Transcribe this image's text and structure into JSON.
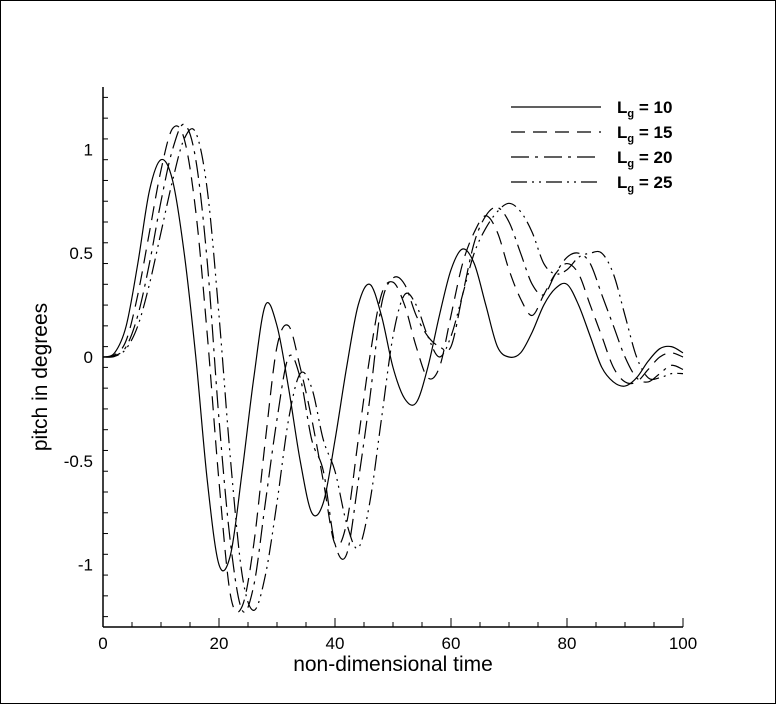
{
  "chart_data": {
    "type": "line",
    "xlabel": "non-dimensional time",
    "ylabel": "pitch in degrees",
    "xlim": [
      0,
      100
    ],
    "ylim": [
      -1.3,
      1.3
    ],
    "x_ticks": [
      0,
      20,
      40,
      60,
      80,
      100
    ],
    "x_tick_labels": [
      "0",
      "20",
      "40",
      "60",
      "80",
      "100"
    ],
    "y_ticks": [
      -1,
      -0.5,
      0,
      0.5,
      1
    ],
    "y_tick_labels": [
      "-1",
      "-0.5",
      "0",
      "0.5",
      "1"
    ],
    "grid": false,
    "legend_position": "top-right",
    "line_color": "#000000",
    "series": [
      {
        "label_main": "L",
        "label_sub": "g",
        "label_value": "= 10",
        "dash": "solid",
        "points": [
          [
            0,
            0
          ],
          [
            2,
            0.02
          ],
          [
            4,
            0.15
          ],
          [
            6,
            0.45
          ],
          [
            8,
            0.8
          ],
          [
            10,
            0.95
          ],
          [
            12,
            0.85
          ],
          [
            14,
            0.5
          ],
          [
            16,
            0
          ],
          [
            18,
            -0.6
          ],
          [
            20,
            -1.0
          ],
          [
            22,
            -0.95
          ],
          [
            24,
            -0.55
          ],
          [
            26,
            -0.1
          ],
          [
            28,
            0.25
          ],
          [
            30,
            0.15
          ],
          [
            32,
            -0.15
          ],
          [
            34,
            -0.5
          ],
          [
            36,
            -0.75
          ],
          [
            38,
            -0.7
          ],
          [
            40,
            -0.4
          ],
          [
            42,
            -0.05
          ],
          [
            44,
            0.25
          ],
          [
            46,
            0.35
          ],
          [
            48,
            0.2
          ],
          [
            50,
            -0.05
          ],
          [
            52,
            -0.2
          ],
          [
            54,
            -0.22
          ],
          [
            56,
            -0.05
          ],
          [
            58,
            0.2
          ],
          [
            60,
            0.42
          ],
          [
            62,
            0.52
          ],
          [
            64,
            0.45
          ],
          [
            66,
            0.25
          ],
          [
            68,
            0.05
          ],
          [
            70,
            0
          ],
          [
            72,
            0.02
          ],
          [
            74,
            0.12
          ],
          [
            76,
            0.25
          ],
          [
            78,
            0.33
          ],
          [
            80,
            0.35
          ],
          [
            82,
            0.25
          ],
          [
            84,
            0.1
          ],
          [
            86,
            -0.05
          ],
          [
            88,
            -0.12
          ],
          [
            90,
            -0.14
          ],
          [
            92,
            -0.1
          ],
          [
            94,
            -0.02
          ],
          [
            96,
            0.04
          ],
          [
            98,
            0.05
          ],
          [
            100,
            0.02
          ]
        ]
      },
      {
        "label_main": "L",
        "label_sub": "g",
        "label_value": "= 15",
        "dash": "dashed",
        "points": [
          [
            0,
            0
          ],
          [
            2,
            0.01
          ],
          [
            4,
            0.08
          ],
          [
            6,
            0.3
          ],
          [
            8,
            0.6
          ],
          [
            10,
            0.9
          ],
          [
            12,
            1.1
          ],
          [
            14,
            1.05
          ],
          [
            16,
            0.7
          ],
          [
            18,
            0.1
          ],
          [
            20,
            -0.6
          ],
          [
            22,
            -1.15
          ],
          [
            24,
            -1.2
          ],
          [
            26,
            -0.9
          ],
          [
            28,
            -0.4
          ],
          [
            30,
            0.05
          ],
          [
            32,
            0.15
          ],
          [
            34,
            -0.05
          ],
          [
            36,
            -0.3
          ],
          [
            38,
            -0.6
          ],
          [
            40,
            -0.9
          ],
          [
            42,
            -0.8
          ],
          [
            44,
            -0.4
          ],
          [
            46,
            0
          ],
          [
            48,
            0.3
          ],
          [
            50,
            0.36
          ],
          [
            52,
            0.25
          ],
          [
            54,
            0.05
          ],
          [
            56,
            -0.1
          ],
          [
            58,
            -0.05
          ],
          [
            60,
            0.2
          ],
          [
            62,
            0.45
          ],
          [
            64,
            0.6
          ],
          [
            66,
            0.68
          ],
          [
            68,
            0.6
          ],
          [
            70,
            0.42
          ],
          [
            72,
            0.28
          ],
          [
            74,
            0.2
          ],
          [
            76,
            0.3
          ],
          [
            78,
            0.4
          ],
          [
            80,
            0.45
          ],
          [
            82,
            0.4
          ],
          [
            84,
            0.25
          ],
          [
            86,
            0.1
          ],
          [
            88,
            -0.05
          ],
          [
            90,
            -0.12
          ],
          [
            92,
            -0.12
          ],
          [
            94,
            -0.06
          ],
          [
            96,
            0
          ],
          [
            98,
            0.02
          ],
          [
            100,
            0
          ]
        ]
      },
      {
        "label_main": "L",
        "label_sub": "g",
        "label_value": "= 20",
        "dash": "dash-dot",
        "points": [
          [
            0,
            0
          ],
          [
            2,
            0.005
          ],
          [
            4,
            0.05
          ],
          [
            6,
            0.2
          ],
          [
            8,
            0.45
          ],
          [
            10,
            0.75
          ],
          [
            12,
            1.0
          ],
          [
            14,
            1.12
          ],
          [
            16,
            0.95
          ],
          [
            18,
            0.45
          ],
          [
            20,
            -0.3
          ],
          [
            22,
            -0.9
          ],
          [
            24,
            -1.22
          ],
          [
            26,
            -1.1
          ],
          [
            28,
            -0.7
          ],
          [
            30,
            -0.3
          ],
          [
            32,
            0
          ],
          [
            34,
            -0.1
          ],
          [
            36,
            -0.4
          ],
          [
            38,
            -0.55
          ],
          [
            40,
            -0.9
          ],
          [
            42,
            -0.95
          ],
          [
            44,
            -0.6
          ],
          [
            46,
            -0.2
          ],
          [
            48,
            0.25
          ],
          [
            50,
            0.38
          ],
          [
            52,
            0.35
          ],
          [
            54,
            0.2
          ],
          [
            56,
            0.1
          ],
          [
            58,
            0.05
          ],
          [
            60,
            0.05
          ],
          [
            62,
            0.3
          ],
          [
            64,
            0.55
          ],
          [
            66,
            0.68
          ],
          [
            68,
            0.72
          ],
          [
            70,
            0.65
          ],
          [
            72,
            0.5
          ],
          [
            74,
            0.35
          ],
          [
            76,
            0.3
          ],
          [
            78,
            0.4
          ],
          [
            80,
            0.48
          ],
          [
            82,
            0.5
          ],
          [
            84,
            0.45
          ],
          [
            86,
            0.3
          ],
          [
            88,
            0.15
          ],
          [
            90,
            0
          ],
          [
            92,
            -0.1
          ],
          [
            94,
            -0.12
          ],
          [
            96,
            -0.08
          ],
          [
            98,
            -0.04
          ],
          [
            100,
            -0.06
          ]
        ]
      },
      {
        "label_main": "L",
        "label_sub": "g",
        "label_value": "= 25",
        "dash": "dash-dot-dot",
        "points": [
          [
            0,
            0
          ],
          [
            2,
            0.003
          ],
          [
            4,
            0.04
          ],
          [
            6,
            0.15
          ],
          [
            8,
            0.35
          ],
          [
            10,
            0.6
          ],
          [
            12,
            0.85
          ],
          [
            14,
            1.05
          ],
          [
            16,
            1.08
          ],
          [
            18,
            0.8
          ],
          [
            20,
            0.2
          ],
          [
            22,
            -0.5
          ],
          [
            24,
            -1.05
          ],
          [
            26,
            -1.22
          ],
          [
            28,
            -1.05
          ],
          [
            30,
            -0.7
          ],
          [
            32,
            -0.3
          ],
          [
            34,
            -0.08
          ],
          [
            36,
            -0.15
          ],
          [
            38,
            -0.4
          ],
          [
            40,
            -0.55
          ],
          [
            42,
            -0.8
          ],
          [
            44,
            -0.92
          ],
          [
            46,
            -0.7
          ],
          [
            48,
            -0.3
          ],
          [
            50,
            0.1
          ],
          [
            52,
            0.3
          ],
          [
            54,
            0.25
          ],
          [
            56,
            0.1
          ],
          [
            58,
            0
          ],
          [
            60,
            0.1
          ],
          [
            62,
            0.3
          ],
          [
            64,
            0.5
          ],
          [
            66,
            0.62
          ],
          [
            68,
            0.7
          ],
          [
            70,
            0.74
          ],
          [
            72,
            0.7
          ],
          [
            74,
            0.6
          ],
          [
            76,
            0.45
          ],
          [
            78,
            0.4
          ],
          [
            80,
            0.42
          ],
          [
            82,
            0.48
          ],
          [
            84,
            0.5
          ],
          [
            86,
            0.5
          ],
          [
            88,
            0.4
          ],
          [
            90,
            0.2
          ],
          [
            92,
            0
          ],
          [
            94,
            -0.1
          ],
          [
            96,
            -0.1
          ],
          [
            98,
            -0.08
          ],
          [
            100,
            -0.08
          ]
        ]
      }
    ]
  }
}
